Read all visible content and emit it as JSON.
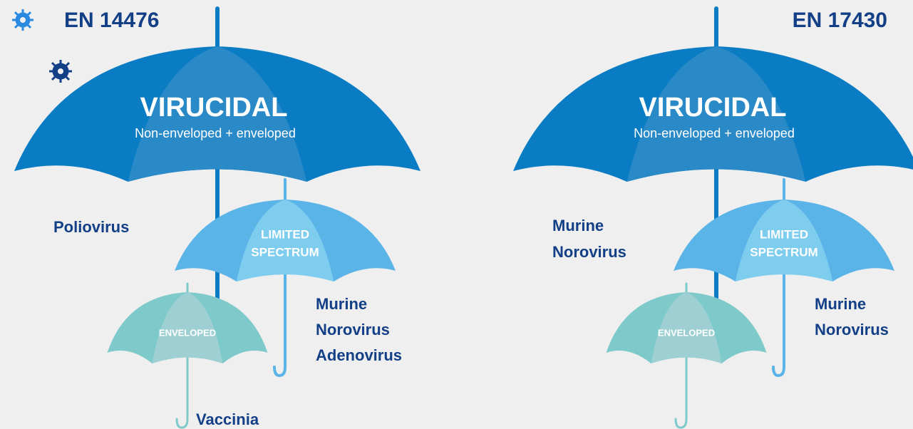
{
  "panels": [
    {
      "title": "EN 14476",
      "virucidal": {
        "label": "VIRUCIDAL",
        "sublabel": "Non-enveloped + enveloped",
        "organisms": [
          "Poliovirus"
        ]
      },
      "limited_spectrum": {
        "label_lines": [
          "LIMITED",
          "SPECTRUM"
        ],
        "organisms": [
          "Murine",
          "Norovirus",
          "Adenovirus"
        ]
      },
      "enveloped": {
        "label": "ENVELOPED",
        "organisms": [
          "Vaccinia"
        ]
      }
    },
    {
      "title": "EN 17430",
      "virucidal": {
        "label": "VIRUCIDAL",
        "sublabel": "Non-enveloped + enveloped",
        "organisms": [
          "Murine",
          "Norovirus"
        ]
      },
      "limited_spectrum": {
        "label_lines": [
          "LIMITED",
          "SPECTRUM"
        ],
        "organisms": [
          "Murine",
          "Norovirus"
        ]
      },
      "enveloped": {
        "label": "ENVELOPED"
      }
    }
  ]
}
